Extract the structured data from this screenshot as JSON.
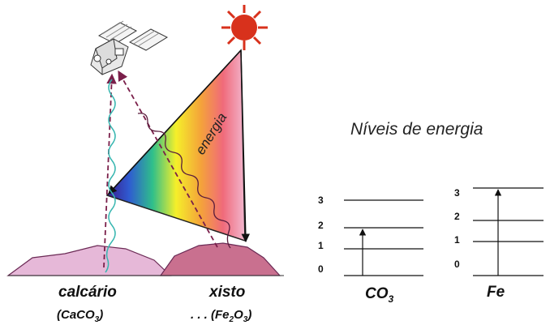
{
  "diagram": {
    "energy_label": "energia",
    "levels_title": "Níveis de energia",
    "rocks": [
      {
        "name": "calcário",
        "formula_main": "(CaCO",
        "formula_sub": "3",
        "formula_end": ")"
      },
      {
        "name": "xisto",
        "formula_prefix": ". . . (Fe",
        "formula_sub1": "2",
        "formula_mid": "O",
        "formula_sub2": "3",
        "formula_end": ")"
      }
    ],
    "co3_panel": {
      "element": "CO",
      "element_sub": "3",
      "levels": [
        "3",
        "2",
        "1",
        "0"
      ],
      "transition": {
        "from": "0",
        "to": "2"
      }
    },
    "fe_panel": {
      "element": "Fe",
      "levels": [
        "3",
        "2",
        "1",
        "0"
      ],
      "transition": {
        "from": "0",
        "to": "3"
      }
    },
    "colors": {
      "sun": "#d8311c",
      "rock_left": "#e6b8d8",
      "rock_right": "#c9708f",
      "wave_left": "#36b6b0",
      "arrow_dashed": "#7a1f4a",
      "line": "#111111"
    }
  }
}
